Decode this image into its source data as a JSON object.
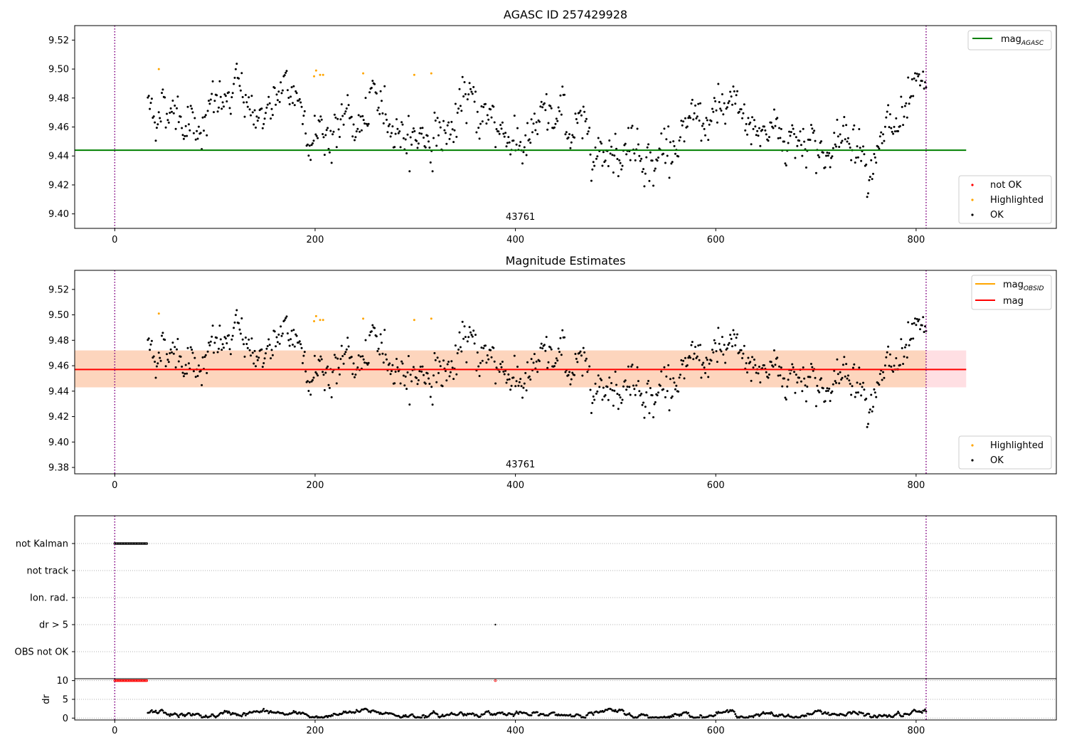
{
  "chart_data": [
    {
      "type": "scatter",
      "title": "AGASC ID 257429928",
      "xlim": [
        -40,
        940
      ],
      "ylim": [
        9.39,
        9.53
      ],
      "xticks": [
        0,
        200,
        400,
        600,
        800
      ],
      "yticks": [
        9.4,
        9.42,
        9.44,
        9.46,
        9.48,
        9.5,
        9.52
      ],
      "vlines": [
        0,
        810
      ],
      "hline": {
        "name": "mag_AGASC",
        "value": 9.444,
        "x_range": [
          -40,
          850
        ],
        "color": "#008000"
      },
      "annotation": {
        "text": "43761",
        "x": 405,
        "y": 9.396
      },
      "legend_upper": [
        {
          "label": "mag",
          "sub": "AGASC",
          "color": "#008000",
          "kind": "line"
        }
      ],
      "legend_lower": [
        {
          "label": "not OK",
          "color": "#ff0000",
          "kind": "marker"
        },
        {
          "label": "Highlighted",
          "color": "#ffa500",
          "kind": "marker"
        },
        {
          "label": "OK",
          "color": "#000000",
          "kind": "marker"
        }
      ],
      "highlighted_points": [
        [
          44,
          9.5
        ],
        [
          199,
          9.495
        ],
        [
          201,
          9.499
        ],
        [
          205,
          9.496
        ],
        [
          208,
          9.496
        ],
        [
          248,
          9.497
        ],
        [
          299,
          9.496
        ],
        [
          316,
          9.497
        ]
      ]
    },
    {
      "type": "scatter",
      "title": "Magnitude Estimates",
      "xlim": [
        -40,
        940
      ],
      "ylim": [
        9.375,
        9.535
      ],
      "xticks": [
        0,
        200,
        400,
        600,
        800
      ],
      "yticks": [
        9.38,
        9.4,
        9.42,
        9.44,
        9.46,
        9.48,
        9.5,
        9.52
      ],
      "vlines": [
        0,
        810
      ],
      "mean_line": {
        "name": "mag",
        "value": 9.457,
        "x_range": [
          -40,
          850
        ],
        "color": "#ff0000"
      },
      "band_outer": [
        9.443,
        9.472
      ],
      "band_inner": [
        9.443,
        9.472
      ],
      "annotation": {
        "text": "43761",
        "x": 405,
        "y": 9.38
      },
      "legend_upper": [
        {
          "label": "mag",
          "sub": "OBSID",
          "color": "#ffa500",
          "kind": "line"
        },
        {
          "label": "mag",
          "sub": "",
          "color": "#ff0000",
          "kind": "line"
        }
      ],
      "legend_lower": [
        {
          "label": "Highlighted",
          "color": "#ffa500",
          "kind": "marker"
        },
        {
          "label": "OK",
          "color": "#000000",
          "kind": "marker"
        }
      ],
      "highlighted_points": [
        [
          44,
          9.501
        ],
        [
          199,
          9.495
        ],
        [
          201,
          9.499
        ],
        [
          205,
          9.496
        ],
        [
          208,
          9.496
        ],
        [
          248,
          9.497
        ],
        [
          299,
          9.496
        ],
        [
          316,
          9.497
        ]
      ]
    },
    {
      "type": "scatter",
      "title": "",
      "xlim": [
        -40,
        940
      ],
      "categories": [
        "not Kalman",
        "not track",
        "Ion. rad.",
        "dr > 5",
        "OBS not OK"
      ],
      "flag_points": {
        "not Kalman": {
          "x_range": [
            0,
            32
          ],
          "count": 34
        },
        "dr > 5": {
          "x": [
            380
          ]
        }
      },
      "vlines": [
        0,
        810
      ]
    },
    {
      "type": "scatter",
      "title": "",
      "xlim": [
        -40,
        940
      ],
      "ylabel": "dr",
      "ylim": [
        -0.5,
        10.5
      ],
      "yticks": [
        0,
        5,
        10
      ],
      "xticks": [
        0,
        200,
        400,
        600,
        800
      ],
      "red_points_at_10": {
        "x_range": [
          0,
          32
        ],
        "count": 34,
        "extra_x": [
          380
        ]
      },
      "dr_range": [
        0,
        2.5
      ],
      "vlines": [
        0,
        810
      ]
    }
  ]
}
